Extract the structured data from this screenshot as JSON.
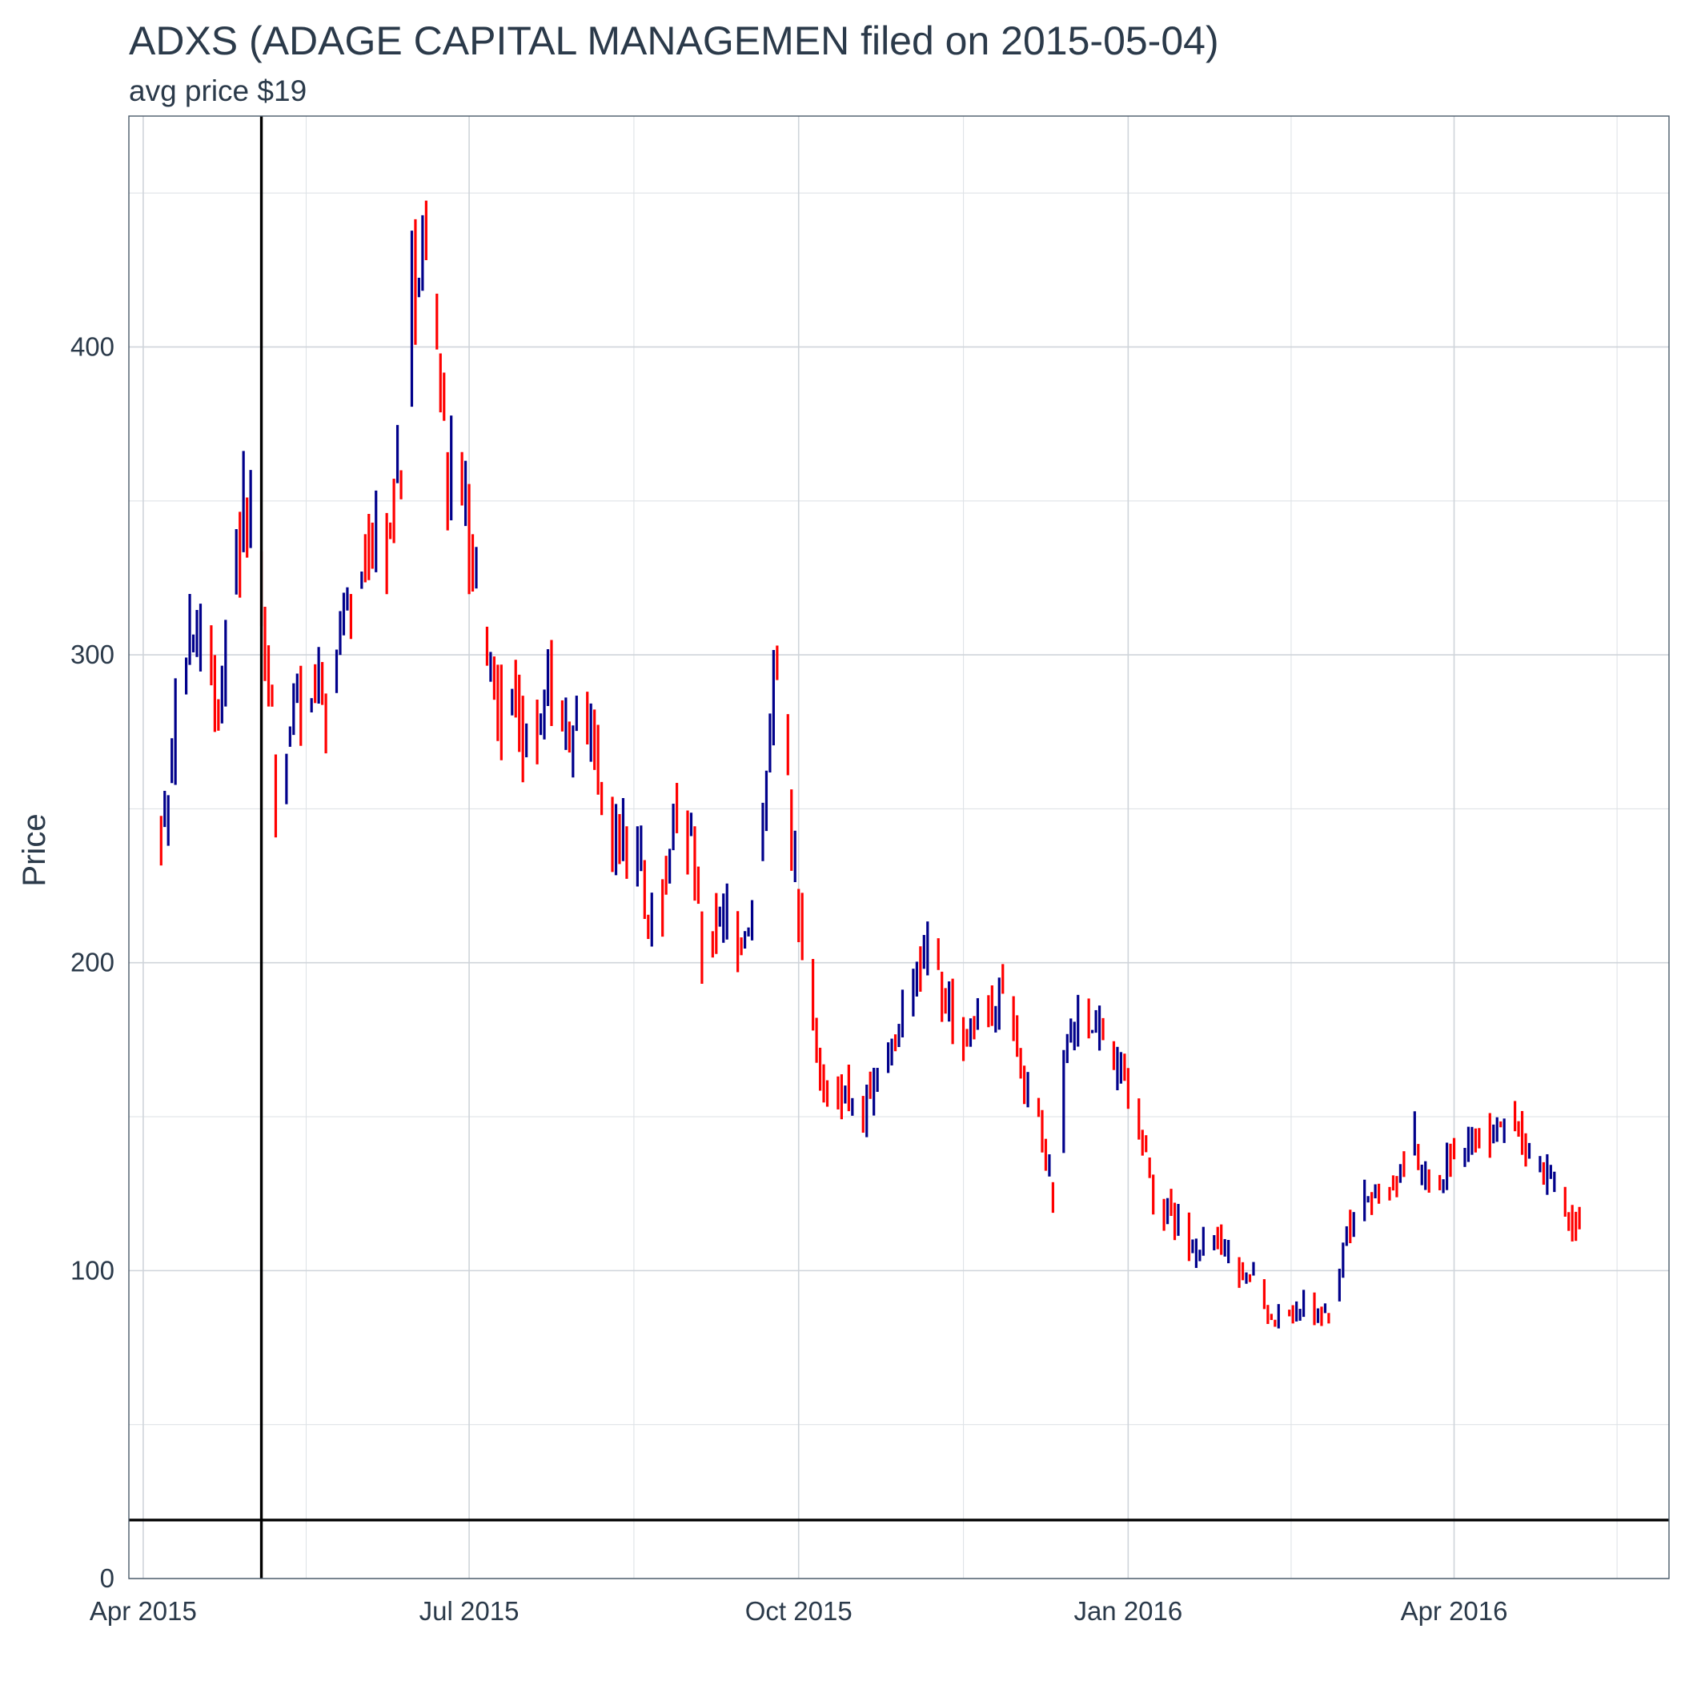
{
  "chart_data": {
    "type": "ohlc",
    "title": "ADXS (ADAGE CAPITAL MANAGEMEN filed on 2015-05-04)",
    "subtitle": "avg price $19",
    "xlabel": "",
    "ylabel": "Price",
    "ylim": [
      0,
      475
    ],
    "xlim": [
      "2015-03-28",
      "2016-05-31"
    ],
    "x_ticks": [
      {
        "date": "2015-04-01",
        "label": "Apr 2015"
      },
      {
        "date": "2015-07-01",
        "label": "Jul 2015"
      },
      {
        "date": "2015-10-01",
        "label": "Oct 2015"
      },
      {
        "date": "2016-01-01",
        "label": "Jan 2016"
      },
      {
        "date": "2016-04-01",
        "label": "Apr 2016"
      }
    ],
    "y_ticks": [
      0,
      100,
      200,
      300,
      400
    ],
    "grid": true,
    "reference_lines": [
      {
        "orientation": "vertical",
        "date": "2015-05-04",
        "label": "filing date"
      },
      {
        "orientation": "horizontal",
        "value": 19,
        "label": "avg price"
      }
    ],
    "colors": {
      "up": "#00008b",
      "down": "#ff0000",
      "reference": "#000000"
    },
    "anchors": [
      [
        "2015-04-06",
        238
      ],
      [
        "2015-04-10",
        275
      ],
      [
        "2015-04-14",
        300
      ],
      [
        "2015-04-17",
        308
      ],
      [
        "2015-04-21",
        278
      ],
      [
        "2015-04-24",
        300
      ],
      [
        "2015-04-27",
        330
      ],
      [
        "2015-04-29",
        355
      ],
      [
        "2015-05-01",
        342
      ],
      [
        "2015-05-05",
        295
      ],
      [
        "2015-05-07",
        285
      ],
      [
        "2015-05-08",
        250
      ],
      [
        "2015-05-11",
        265
      ],
      [
        "2015-05-13",
        282
      ],
      [
        "2015-05-18",
        285
      ],
      [
        "2015-05-22",
        288
      ],
      [
        "2015-05-28",
        310
      ],
      [
        "2015-06-01",
        332
      ],
      [
        "2015-06-04",
        340
      ],
      [
        "2015-06-08",
        335
      ],
      [
        "2015-06-12",
        360
      ],
      [
        "2015-06-15",
        420
      ],
      [
        "2015-06-19",
        440
      ],
      [
        "2015-06-22",
        395
      ],
      [
        "2015-06-25",
        360
      ],
      [
        "2015-06-29",
        365
      ],
      [
        "2015-07-01",
        330
      ],
      [
        "2015-07-06",
        300
      ],
      [
        "2015-07-10",
        285
      ],
      [
        "2015-07-14",
        280
      ],
      [
        "2015-07-20",
        275
      ],
      [
        "2015-07-24",
        285
      ],
      [
        "2015-07-28",
        275
      ],
      [
        "2015-08-03",
        278
      ],
      [
        "2015-08-07",
        255
      ],
      [
        "2015-08-11",
        240
      ],
      [
        "2015-08-17",
        235
      ],
      [
        "2015-08-21",
        210
      ],
      [
        "2015-08-25",
        230
      ],
      [
        "2015-08-28",
        255
      ],
      [
        "2015-09-02",
        232
      ],
      [
        "2015-09-04",
        205
      ],
      [
        "2015-09-09",
        215
      ],
      [
        "2015-09-14",
        205
      ],
      [
        "2015-09-18",
        215
      ],
      [
        "2015-09-22",
        255
      ],
      [
        "2015-09-25",
        300
      ],
      [
        "2015-09-29",
        240
      ],
      [
        "2015-10-02",
        210
      ],
      [
        "2015-10-06",
        170
      ],
      [
        "2015-10-09",
        150
      ],
      [
        "2015-10-13",
        160
      ],
      [
        "2015-10-19",
        150
      ],
      [
        "2015-10-23",
        162
      ],
      [
        "2015-10-27",
        175
      ],
      [
        "2015-11-02",
        190
      ],
      [
        "2015-11-06",
        205
      ],
      [
        "2015-11-10",
        190
      ],
      [
        "2015-11-16",
        178
      ],
      [
        "2015-11-20",
        182
      ],
      [
        "2015-11-26",
        188
      ],
      [
        "2015-12-01",
        175
      ],
      [
        "2015-12-03",
        160
      ],
      [
        "2015-12-07",
        148
      ],
      [
        "2015-12-11",
        125
      ],
      [
        "2015-12-15",
        180
      ],
      [
        "2015-12-21",
        182
      ],
      [
        "2015-12-29",
        165
      ],
      [
        "2016-01-04",
        150
      ],
      [
        "2016-01-08",
        125
      ],
      [
        "2016-01-13",
        120
      ],
      [
        "2016-01-19",
        105
      ],
      [
        "2016-01-25",
        110
      ],
      [
        "2016-02-01",
        100
      ],
      [
        "2016-02-05",
        100
      ],
      [
        "2016-02-10",
        85
      ],
      [
        "2016-02-16",
        88
      ],
      [
        "2016-02-22",
        88
      ],
      [
        "2016-02-26",
        85
      ],
      [
        "2016-03-03",
        115
      ],
      [
        "2016-03-09",
        125
      ],
      [
        "2016-03-15",
        128
      ],
      [
        "2016-03-21",
        145
      ],
      [
        "2016-03-25",
        125
      ],
      [
        "2016-03-31",
        135
      ],
      [
        "2016-04-06",
        143
      ],
      [
        "2016-04-12",
        145
      ],
      [
        "2016-04-18",
        148
      ],
      [
        "2016-04-22",
        140
      ],
      [
        "2016-04-28",
        130
      ],
      [
        "2016-05-03",
        118
      ],
      [
        "2016-05-06",
        115
      ]
    ]
  }
}
